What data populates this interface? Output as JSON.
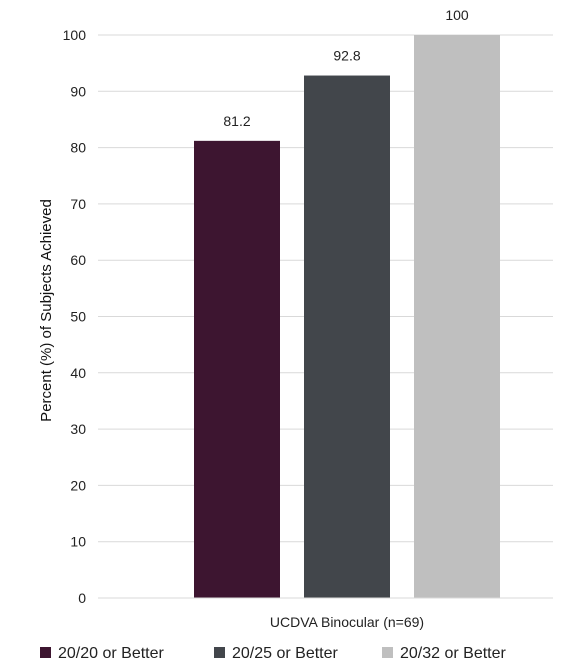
{
  "chart_data": {
    "type": "bar",
    "categories": [
      "UCDVA Binocular (n=69)"
    ],
    "series": [
      {
        "name": "20/20 or Better",
        "values": [
          81.2
        ],
        "color": "#3d1530"
      },
      {
        "name": "20/25 or Better",
        "values": [
          92.8
        ],
        "color": "#42464b"
      },
      {
        "name": "20/32 or Better",
        "values": [
          100
        ],
        "color": "#bfbfbf"
      }
    ],
    "title": "",
    "xlabel": "",
    "ylabel": "Percent (%) of Subjects Achieved",
    "ylim": [
      0,
      100
    ],
    "yticks": [
      0,
      10,
      20,
      30,
      40,
      50,
      60,
      70,
      80,
      90,
      100
    ],
    "grid": true,
    "legend_position": "bottom",
    "gridline_color": "#d9d9d9"
  }
}
